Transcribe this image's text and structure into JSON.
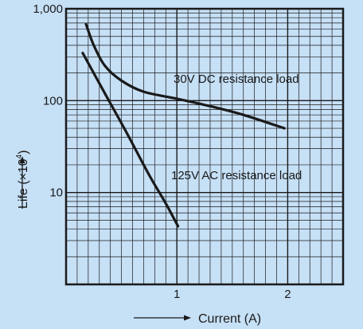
{
  "chart_data": {
    "type": "line",
    "title": "",
    "xlabel": "Current (A)",
    "ylabel_text": "Life (×10",
    "ylabel_exp": "4",
    "ylabel_close": ")",
    "xlim": [
      0,
      2.5
    ],
    "ylim": [
      1,
      1000
    ],
    "yscale": "log",
    "grid": true,
    "x_ticks": [
      {
        "value": 1,
        "label": "1"
      },
      {
        "value": 2,
        "label": "2"
      }
    ],
    "y_ticks": [
      {
        "value": 10,
        "label": "10"
      },
      {
        "value": 100,
        "label": "100"
      },
      {
        "value": 1000,
        "label": "1,000"
      }
    ],
    "series": [
      {
        "annotation": "30V DC resistance load",
        "x": [
          0.18,
          0.25,
          0.35,
          0.5,
          0.7,
          1.0,
          1.3,
          1.6,
          1.97
        ],
        "y": [
          680,
          400,
          240,
          165,
          125,
          105,
          87,
          70,
          50
        ]
      },
      {
        "annotation": "125V AC resistance load",
        "x": [
          0.15,
          0.35,
          0.55,
          0.75,
          0.9,
          1.01
        ],
        "y": [
          330,
          120,
          44,
          15.5,
          7.6,
          4.3
        ]
      }
    ]
  }
}
